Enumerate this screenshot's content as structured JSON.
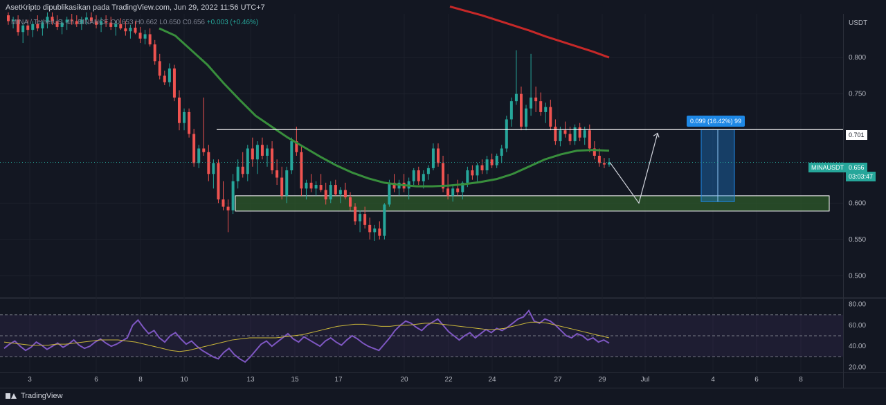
{
  "header": {
    "publisher": "AsetKripto dipublikasikan pada TradingView.com, Jun 29, 2022 11:56 UTC+7"
  },
  "symbol": {
    "info": "MINA / TetherUS, 4h, BINANCE O0.653 H0.662 L0.650 C0.656",
    "change": "+0.003 (+0.46%)"
  },
  "axis": {
    "currency": "USDT",
    "price_ticks": [
      "0.800",
      "0.750",
      "0.701",
      "0.656",
      "0.600",
      "0.550",
      "0.500"
    ],
    "rsi_ticks": [
      "80.00",
      "60.00",
      "40.00",
      "20.00"
    ],
    "time_ticks": [
      "3",
      "6",
      "8",
      "10",
      "13",
      "15",
      "17",
      "20",
      "22",
      "24",
      "27",
      "29",
      "Jul",
      "4",
      "6",
      "8"
    ]
  },
  "badges": {
    "resistance": "0.701",
    "symbol_name": "MINAUSDT",
    "last_price": "0.656",
    "countdown": "03:03:47",
    "measure": "0.099 (16.42%) 99"
  },
  "colors": {
    "background": "#131722",
    "up": "#26a69a",
    "down": "#ef5350",
    "ma_fast": "#388e3c",
    "ma_slow": "#c62828",
    "rsi": "#7e57c2",
    "rsi_ma": "#c9b63a",
    "zone_border": "#ffffff",
    "zone_fill": "#2e5a2a",
    "measure": "#1e88e5"
  },
  "footer": {
    "brand": "TradingView"
  },
  "chart_data": [
    {
      "type": "candlestick",
      "title": "MINA / TetherUS, 4h, BINANCE",
      "ylabel": "USDT",
      "ylim": [
        0.47,
        0.86
      ],
      "last_price": 0.656,
      "resistance_level": 0.701,
      "support_zone": [
        0.589,
        0.61
      ],
      "projection": [
        0.656,
        0.6,
        0.696
      ],
      "measure_range": {
        "from": 0.602,
        "to": 0.701,
        "change": 0.099,
        "percent": 16.42
      },
      "ma_fast": [
        0.84,
        0.83,
        0.81,
        0.79,
        0.765,
        0.742,
        0.72,
        0.705,
        0.69,
        0.677,
        0.664,
        0.652,
        0.642,
        0.634,
        0.628,
        0.625,
        0.623,
        0.623,
        0.624,
        0.626,
        0.629,
        0.633,
        0.64,
        0.65,
        0.66,
        0.667,
        0.672,
        0.673,
        0.672
      ],
      "ma_slow": [
        0.87,
        0.864,
        0.858,
        0.851,
        0.844,
        0.837,
        0.829,
        0.822,
        0.815,
        0.808,
        0.8
      ],
      "candles": [
        [
          0.858,
          0.862,
          0.845,
          0.85
        ],
        [
          0.85,
          0.856,
          0.84,
          0.852
        ],
        [
          0.852,
          0.858,
          0.83,
          0.835
        ],
        [
          0.835,
          0.848,
          0.82,
          0.844
        ],
        [
          0.844,
          0.852,
          0.83,
          0.838
        ],
        [
          0.838,
          0.85,
          0.828,
          0.846
        ],
        [
          0.846,
          0.858,
          0.836,
          0.84
        ],
        [
          0.84,
          0.85,
          0.83,
          0.848
        ],
        [
          0.848,
          0.862,
          0.84,
          0.856
        ],
        [
          0.856,
          0.862,
          0.845,
          0.85
        ],
        [
          0.85,
          0.858,
          0.838,
          0.842
        ],
        [
          0.842,
          0.852,
          0.832,
          0.848
        ],
        [
          0.848,
          0.856,
          0.838,
          0.852
        ],
        [
          0.852,
          0.86,
          0.845,
          0.85
        ],
        [
          0.85,
          0.858,
          0.842,
          0.846
        ],
        [
          0.846,
          0.856,
          0.838,
          0.852
        ],
        [
          0.852,
          0.862,
          0.845,
          0.855
        ],
        [
          0.855,
          0.862,
          0.848,
          0.85
        ],
        [
          0.85,
          0.858,
          0.84,
          0.845
        ],
        [
          0.845,
          0.855,
          0.835,
          0.85
        ],
        [
          0.85,
          0.858,
          0.842,
          0.848
        ],
        [
          0.848,
          0.856,
          0.838,
          0.842
        ],
        [
          0.842,
          0.85,
          0.83,
          0.846
        ],
        [
          0.846,
          0.854,
          0.838,
          0.84
        ],
        [
          0.84,
          0.85,
          0.83,
          0.836
        ],
        [
          0.836,
          0.845,
          0.826,
          0.841
        ],
        [
          0.841,
          0.85,
          0.832,
          0.834
        ],
        [
          0.834,
          0.842,
          0.82,
          0.826
        ],
        [
          0.826,
          0.838,
          0.818,
          0.832
        ],
        [
          0.832,
          0.84,
          0.815,
          0.818
        ],
        [
          0.818,
          0.824,
          0.79,
          0.795
        ],
        [
          0.795,
          0.805,
          0.77,
          0.775
        ],
        [
          0.775,
          0.782,
          0.762,
          0.766
        ],
        [
          0.766,
          0.792,
          0.76,
          0.785
        ],
        [
          0.785,
          0.79,
          0.74,
          0.745
        ],
        [
          0.745,
          0.755,
          0.7,
          0.71
        ],
        [
          0.71,
          0.73,
          0.7,
          0.725
        ],
        [
          0.725,
          0.73,
          0.69,
          0.695
        ],
        [
          0.695,
          0.702,
          0.65,
          0.655
        ],
        [
          0.655,
          0.68,
          0.648,
          0.675
        ],
        [
          0.675,
          0.745,
          0.665,
          0.67
        ],
        [
          0.67,
          0.68,
          0.63,
          0.64
        ],
        [
          0.64,
          0.66,
          0.62,
          0.655
        ],
        [
          0.655,
          0.66,
          0.6,
          0.605
        ],
        [
          0.605,
          0.63,
          0.59,
          0.595
        ],
        [
          0.595,
          0.605,
          0.56,
          0.59
        ],
        [
          0.59,
          0.64,
          0.585,
          0.63
        ],
        [
          0.63,
          0.66,
          0.62,
          0.65
        ],
        [
          0.65,
          0.67,
          0.635,
          0.64
        ],
        [
          0.64,
          0.68,
          0.63,
          0.675
        ],
        [
          0.675,
          0.69,
          0.65,
          0.66
        ],
        [
          0.66,
          0.685,
          0.64,
          0.68
        ],
        [
          0.68,
          0.69,
          0.66,
          0.665
        ],
        [
          0.665,
          0.68,
          0.65,
          0.675
        ],
        [
          0.675,
          0.685,
          0.64,
          0.645
        ],
        [
          0.645,
          0.66,
          0.625,
          0.635
        ],
        [
          0.635,
          0.65,
          0.605,
          0.61
        ],
        [
          0.61,
          0.65,
          0.6,
          0.645
        ],
        [
          0.645,
          0.69,
          0.64,
          0.685
        ],
        [
          0.685,
          0.705,
          0.665,
          0.67
        ],
        [
          0.67,
          0.68,
          0.61,
          0.62
        ],
        [
          0.62,
          0.632,
          0.605,
          0.628
        ],
        [
          0.628,
          0.64,
          0.615,
          0.62
        ],
        [
          0.62,
          0.63,
          0.61,
          0.625
        ],
        [
          0.625,
          0.64,
          0.615,
          0.618
        ],
        [
          0.618,
          0.628,
          0.598,
          0.605
        ],
        [
          0.605,
          0.63,
          0.6,
          0.625
        ],
        [
          0.625,
          0.632,
          0.61,
          0.612
        ],
        [
          0.612,
          0.622,
          0.6,
          0.618
        ],
        [
          0.618,
          0.628,
          0.605,
          0.608
        ],
        [
          0.608,
          0.615,
          0.59,
          0.595
        ],
        [
          0.595,
          0.6,
          0.57,
          0.575
        ],
        [
          0.575,
          0.59,
          0.56,
          0.585
        ],
        [
          0.585,
          0.595,
          0.565,
          0.57
        ],
        [
          0.57,
          0.58,
          0.55,
          0.56
        ],
        [
          0.56,
          0.57,
          0.548,
          0.565
        ],
        [
          0.565,
          0.575,
          0.55,
          0.555
        ],
        [
          0.555,
          0.6,
          0.55,
          0.598
        ],
        [
          0.598,
          0.632,
          0.595,
          0.628
        ],
        [
          0.628,
          0.64,
          0.615,
          0.62
        ],
        [
          0.62,
          0.632,
          0.61,
          0.628
        ],
        [
          0.628,
          0.64,
          0.615,
          0.62
        ],
        [
          0.62,
          0.635,
          0.605,
          0.63
        ],
        [
          0.63,
          0.648,
          0.625,
          0.645
        ],
        [
          0.645,
          0.65,
          0.625,
          0.63
        ],
        [
          0.63,
          0.645,
          0.62,
          0.64
        ],
        [
          0.64,
          0.652,
          0.632,
          0.648
        ],
        [
          0.648,
          0.682,
          0.645,
          0.675
        ],
        [
          0.675,
          0.682,
          0.65,
          0.655
        ],
        [
          0.655,
          0.665,
          0.615,
          0.62
        ],
        [
          0.62,
          0.64,
          0.605,
          0.61
        ],
        [
          0.61,
          0.625,
          0.602,
          0.62
        ],
        [
          0.62,
          0.632,
          0.61,
          0.615
        ],
        [
          0.615,
          0.63,
          0.605,
          0.628
        ],
        [
          0.628,
          0.65,
          0.622,
          0.645
        ],
        [
          0.645,
          0.652,
          0.632,
          0.638
        ],
        [
          0.638,
          0.655,
          0.63,
          0.652
        ],
        [
          0.652,
          0.66,
          0.64,
          0.645
        ],
        [
          0.645,
          0.665,
          0.64,
          0.66
        ],
        [
          0.66,
          0.668,
          0.648,
          0.652
        ],
        [
          0.652,
          0.668,
          0.648,
          0.665
        ],
        [
          0.665,
          0.68,
          0.655,
          0.675
        ],
        [
          0.675,
          0.72,
          0.67,
          0.715
        ],
        [
          0.715,
          0.745,
          0.705,
          0.74
        ],
        [
          0.74,
          0.81,
          0.735,
          0.75
        ],
        [
          0.75,
          0.76,
          0.7,
          0.705
        ],
        [
          0.705,
          0.735,
          0.7,
          0.73
        ],
        [
          0.73,
          0.805,
          0.72,
          0.745
        ],
        [
          0.745,
          0.76,
          0.725,
          0.74
        ],
        [
          0.74,
          0.752,
          0.72,
          0.725
        ],
        [
          0.725,
          0.738,
          0.71,
          0.732
        ],
        [
          0.732,
          0.742,
          0.7,
          0.705
        ],
        [
          0.705,
          0.715,
          0.68,
          0.685
        ],
        [
          0.685,
          0.705,
          0.678,
          0.7
        ],
        [
          0.7,
          0.712,
          0.69,
          0.695
        ],
        [
          0.695,
          0.705,
          0.68,
          0.685
        ],
        [
          0.685,
          0.708,
          0.68,
          0.704
        ],
        [
          0.704,
          0.71,
          0.685,
          0.69
        ],
        [
          0.69,
          0.705,
          0.68,
          0.7
        ],
        [
          0.7,
          0.708,
          0.67,
          0.675
        ],
        [
          0.675,
          0.685,
          0.66,
          0.665
        ],
        [
          0.665,
          0.675,
          0.65,
          0.655
        ],
        [
          0.655,
          0.662,
          0.648,
          0.653
        ],
        [
          0.653,
          0.662,
          0.65,
          0.656
        ]
      ]
    },
    {
      "type": "line",
      "title": "RSI",
      "ylim": [
        15,
        85
      ],
      "bands": [
        70,
        50,
        30
      ],
      "series": [
        {
          "values": [
            38,
            42,
            45,
            40,
            36,
            39,
            44,
            41,
            37,
            40,
            43,
            39,
            42,
            46,
            41,
            38,
            40,
            44,
            47,
            43,
            40,
            42,
            45,
            48,
            60,
            65,
            58,
            52,
            55,
            48,
            44,
            50,
            53,
            47,
            42,
            45,
            40,
            36,
            33,
            30,
            28,
            34,
            38,
            32,
            28,
            25,
            30,
            36,
            42,
            45,
            40,
            44,
            48,
            52,
            47,
            44,
            49,
            46,
            43,
            40,
            45,
            48,
            44,
            41,
            46,
            50,
            47,
            43,
            40,
            38,
            36,
            42,
            48,
            55,
            60,
            64,
            62,
            58,
            55,
            60,
            63,
            66,
            60,
            54,
            50,
            46,
            50,
            53,
            48,
            52,
            56,
            53,
            57,
            55,
            58,
            62,
            66,
            68,
            74,
            64,
            62,
            66,
            64,
            60,
            55,
            50,
            48,
            52,
            50,
            46,
            48,
            44,
            46,
            43
          ]
        },
        {
          "values": [
            44,
            43,
            42,
            41,
            41,
            41,
            42,
            42,
            43,
            44,
            45,
            46,
            46,
            46,
            45,
            44,
            42,
            40,
            38,
            36,
            35,
            36,
            38,
            40,
            42,
            44,
            46,
            47,
            48,
            48,
            48,
            48,
            49,
            50,
            51,
            53,
            55,
            57,
            59,
            60,
            61,
            61,
            60,
            59,
            59,
            60,
            60,
            61,
            62,
            62,
            61,
            60,
            59,
            58,
            57,
            56,
            56,
            57,
            59,
            61,
            63,
            63,
            62,
            60,
            58,
            56,
            54,
            52,
            50,
            48
          ]
        }
      ]
    }
  ]
}
